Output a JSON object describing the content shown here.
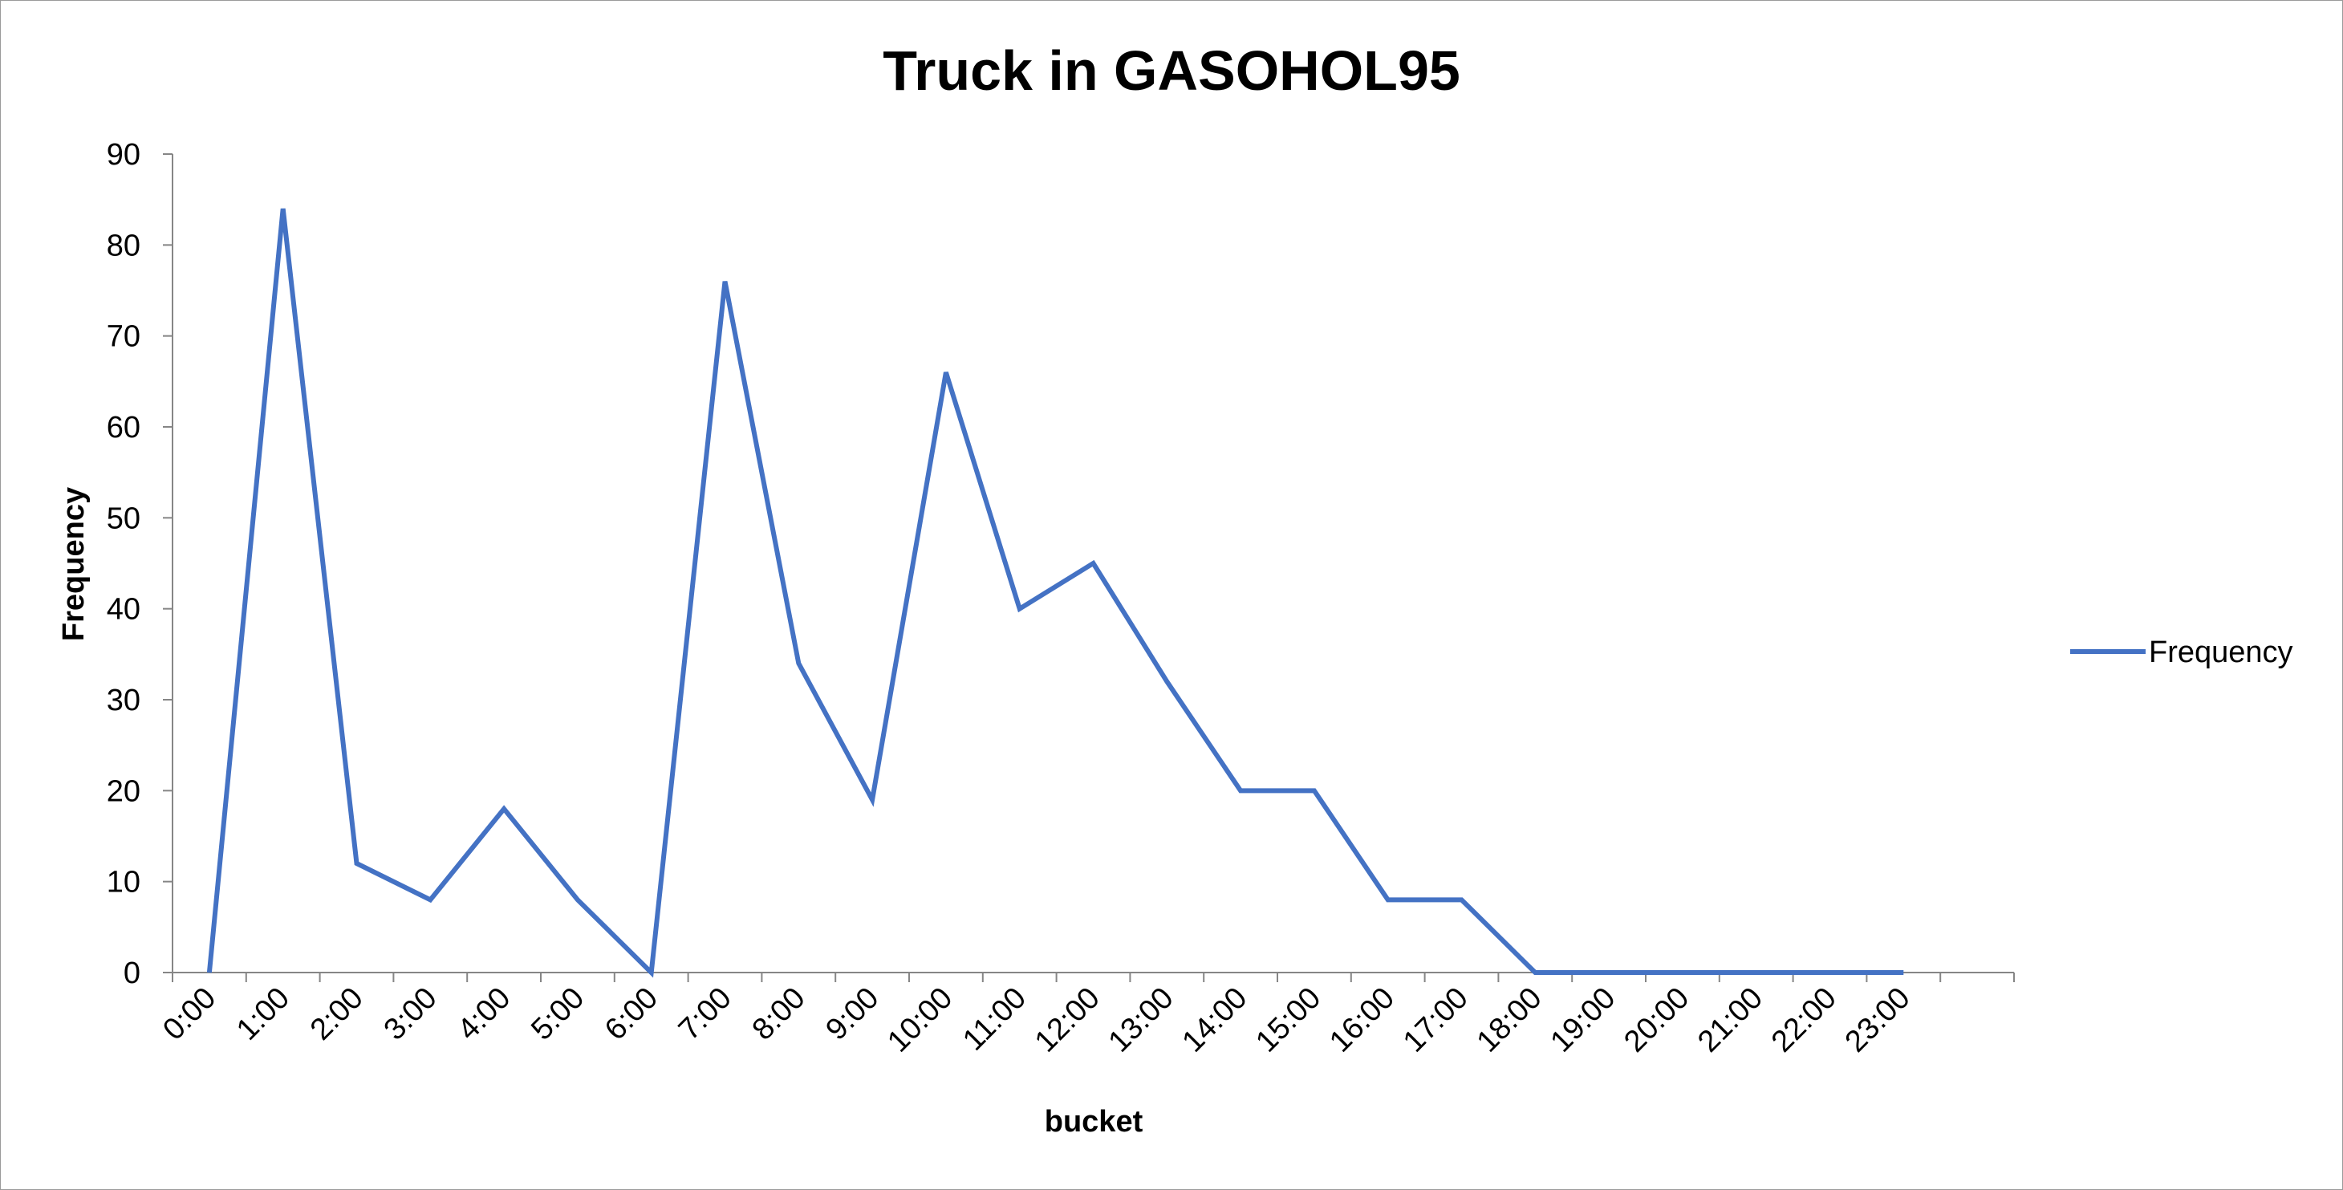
{
  "chart_data": {
    "type": "line",
    "title": "Truck in GASOHOL95",
    "xlabel": "bucket",
    "ylabel": "Frequency",
    "categories": [
      "0:00",
      "1:00",
      "2:00",
      "3:00",
      "4:00",
      "5:00",
      "6:00",
      "7:00",
      "8:00",
      "9:00",
      "10:00",
      "11:00",
      "12:00",
      "13:00",
      "14:00",
      "15:00",
      "16:00",
      "17:00",
      "18:00",
      "19:00",
      "20:00",
      "21:00",
      "22:00",
      "23:00"
    ],
    "series": [
      {
        "name": "Frequency",
        "color": "#4472c4",
        "values": [
          0,
          84,
          12,
          8,
          18,
          8,
          0,
          76,
          34,
          19,
          66,
          40,
          45,
          32,
          20,
          20,
          8,
          8,
          0,
          0,
          0,
          0,
          0,
          0
        ]
      }
    ],
    "ylim": [
      0,
      90
    ],
    "yticks": [
      0,
      10,
      20,
      30,
      40,
      50,
      60,
      70,
      80,
      90
    ],
    "grid": false,
    "legend_position": "right"
  }
}
